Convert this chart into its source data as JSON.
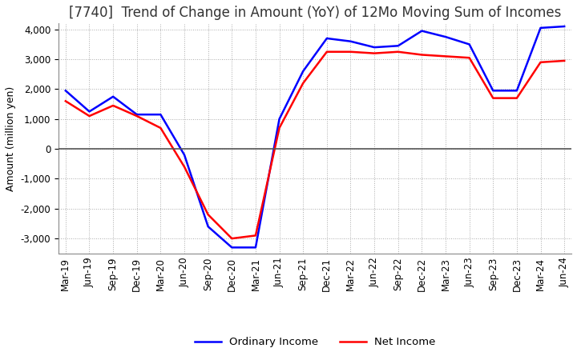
{
  "title": "[7740]  Trend of Change in Amount (YoY) of 12Mo Moving Sum of Incomes",
  "ylabel": "Amount (million yen)",
  "ylim": [
    -3500,
    4200
  ],
  "yticks": [
    -3000,
    -2000,
    -1000,
    0,
    1000,
    2000,
    3000,
    4000
  ],
  "x_labels": [
    "Mar-19",
    "Jun-19",
    "Sep-19",
    "Dec-19",
    "Mar-20",
    "Jun-20",
    "Sep-20",
    "Dec-20",
    "Mar-21",
    "Jun-21",
    "Sep-21",
    "Dec-21",
    "Mar-22",
    "Jun-22",
    "Sep-22",
    "Dec-22",
    "Mar-23",
    "Jun-23",
    "Sep-23",
    "Dec-23",
    "Mar-24",
    "Jun-24"
  ],
  "ordinary_income": [
    1950,
    1250,
    1750,
    1150,
    1150,
    -200,
    -2600,
    -3300,
    -3300,
    1000,
    2600,
    3700,
    3600,
    3400,
    3450,
    3950,
    3750,
    3500,
    1950,
    1950,
    4050,
    4100
  ],
  "net_income": [
    1600,
    1100,
    1450,
    1100,
    700,
    -600,
    -2200,
    -3000,
    -2900,
    700,
    2200,
    3250,
    3250,
    3200,
    3250,
    3150,
    3100,
    3050,
    1700,
    1700,
    2900,
    2950
  ],
  "ordinary_color": "#0000ff",
  "net_color": "#ff0000",
  "grid_color": "#aaaaaa",
  "background_color": "#ffffff",
  "title_fontsize": 12,
  "axis_fontsize": 9,
  "tick_fontsize": 8.5
}
